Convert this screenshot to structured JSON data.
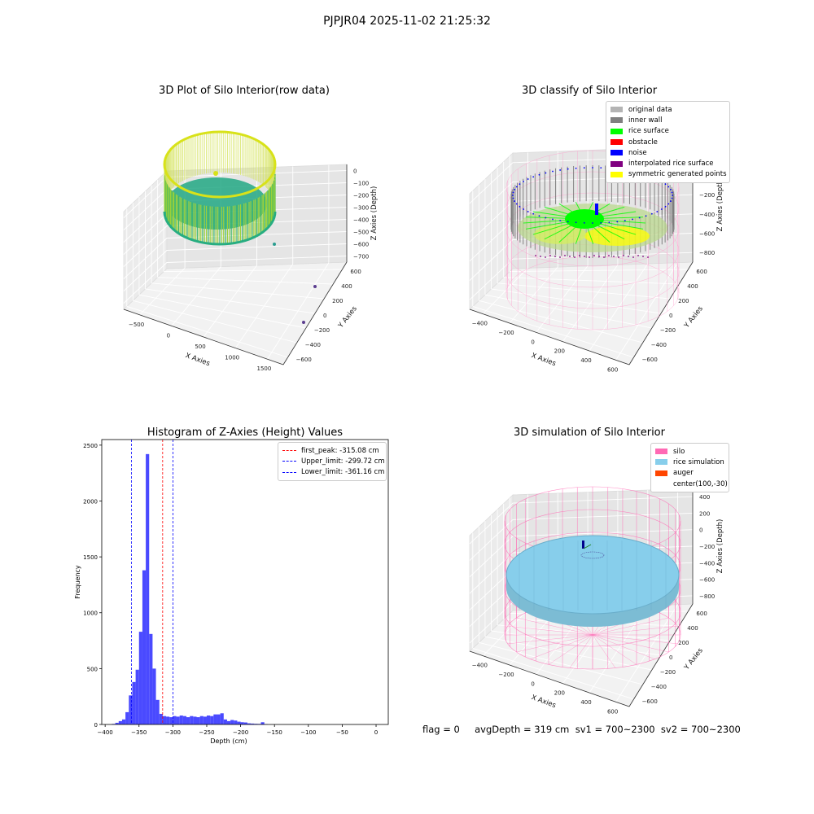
{
  "figure": {
    "suptitle": "PJPJR04 2025-11-02 21:25:32",
    "footer": "flag = 0     avgDepth = 319 cm  sv1 = 700~2300  sv2 = 700~2300"
  },
  "panel_raw": {
    "title": "3D Plot of Silo Interior(row data)",
    "xlabel": "X Axies",
    "ylabel": "Y Axies",
    "zlabel": "Z Axies (Depth)",
    "xticks": [
      "−500",
      "0",
      "500",
      "1000",
      "1500"
    ],
    "yticks": [
      "600",
      "400",
      "200",
      "0",
      "−200",
      "−400",
      "−600"
    ],
    "zticks": [
      "0",
      "−100",
      "−200",
      "−300",
      "−400",
      "−500",
      "−600",
      "−700"
    ],
    "colors": {
      "colormap": "viridis",
      "high": "#d8e219",
      "mid": "#22a884",
      "low": "#440154"
    }
  },
  "panel_classify": {
    "title": "3D classify of Silo Interior",
    "xlabel": "X Axies",
    "ylabel": "Y Axies",
    "zlabel": "Z Axies (Depth)",
    "xticks": [
      "−400",
      "−200",
      "0",
      "200",
      "400",
      "600"
    ],
    "yticks": [
      "600",
      "400",
      "200",
      "0",
      "−200",
      "−400",
      "−600"
    ],
    "zticks": [
      "200",
      "0",
      "−200",
      "−400",
      "−600",
      "−800"
    ],
    "legend": [
      {
        "label": "original data",
        "color": "#b4b4b4"
      },
      {
        "label": "inner wall",
        "color": "#808080"
      },
      {
        "label": "rice surface",
        "color": "#00ff00"
      },
      {
        "label": "obstacle",
        "color": "#ff0000"
      },
      {
        "label": "noise",
        "color": "#0000ff"
      },
      {
        "label": "interpolated rice surface",
        "color": "#800080"
      },
      {
        "label": "symmetric generated points",
        "color": "#ffff00"
      }
    ]
  },
  "panel_sim": {
    "title": "3D simulation of Silo Interior",
    "xlabel": "X Axies",
    "ylabel": "Y Axies",
    "zlabel": "Z Axies (Depth)",
    "xticks": [
      "−400",
      "−200",
      "0",
      "200",
      "400",
      "600"
    ],
    "yticks": [
      "600",
      "400",
      "200",
      "0",
      "−200",
      "−400",
      "−600"
    ],
    "zticks": [
      "400",
      "200",
      "0",
      "−200",
      "−400",
      "−600",
      "−800"
    ],
    "legend": [
      {
        "label": "silo",
        "color": "#ff69b4"
      },
      {
        "label": "rice simulation",
        "color": "#87ceeb"
      },
      {
        "label": "auger",
        "color": "#ff4500"
      },
      {
        "label": "center(100,-30)",
        "color": ""
      }
    ]
  },
  "chart_data": {
    "type": "bar",
    "title": "Histogram of Z-Axies (Height) Values",
    "xlabel": "Depth (cm)",
    "ylabel": "Frequency",
    "xlim": [
      -400,
      0
    ],
    "ylim": [
      0,
      2550
    ],
    "xticks": [
      -400,
      -350,
      -300,
      -250,
      -200,
      -150,
      -100,
      -50,
      0
    ],
    "xtick_labels": [
      "−400",
      "−350",
      "−300",
      "−250",
      "−200",
      "−150",
      "−100",
      "−50",
      "0"
    ],
    "yticks": [
      0,
      500,
      1000,
      1500,
      2000,
      2500
    ],
    "bar_color": "#4040ff",
    "bin_width": 5,
    "bin_start": -390,
    "values": [
      5,
      15,
      30,
      45,
      110,
      260,
      380,
      490,
      830,
      1380,
      2420,
      810,
      500,
      220,
      95,
      75,
      70,
      65,
      75,
      70,
      80,
      75,
      65,
      75,
      70,
      65,
      75,
      70,
      80,
      75,
      90,
      90,
      100,
      45,
      30,
      40,
      35,
      25,
      20,
      18,
      10,
      8,
      6,
      5,
      20,
      3
    ],
    "lines": [
      {
        "label": "first_peak: -315.08 cm",
        "value": -315.08,
        "color": "#ff0000"
      },
      {
        "label": "Upper_limit: -299.72 cm",
        "value": -299.72,
        "color": "#0000ff"
      },
      {
        "label": "Lower_limit: -361.16 cm",
        "value": -361.16,
        "color": "#0000ff"
      }
    ]
  }
}
